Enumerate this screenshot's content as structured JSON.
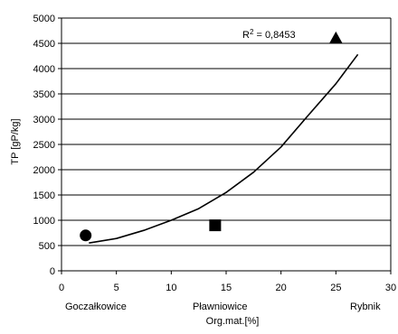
{
  "colors": {
    "grid": "#000000",
    "axis": "#000000",
    "marker": "#000000",
    "curve": "#000000",
    "background": "#ffffff"
  },
  "chart_data": {
    "type": "scatter",
    "title": "",
    "xlabel": "Org.mat.[%]",
    "ylabel": "TP [gP/kg]",
    "xlim": [
      0,
      30
    ],
    "ylim": [
      0,
      5000
    ],
    "x_ticks": [
      0,
      5,
      10,
      15,
      20,
      25,
      30
    ],
    "y_ticks": [
      0,
      500,
      1000,
      1500,
      2000,
      2500,
      3000,
      3500,
      4000,
      4500,
      5000
    ],
    "grid": "horizontal",
    "legend": "none",
    "annotation": {
      "prefix": "R",
      "superscript": "2",
      "suffix": " = 0,8453"
    },
    "points": [
      {
        "name": "Goczałkowice",
        "x": 2.2,
        "y": 700,
        "marker": "circle-icon"
      },
      {
        "name": "Pławniowice",
        "x": 14.0,
        "y": 900,
        "marker": "square-icon"
      },
      {
        "name": "Rybnik",
        "x": 25.0,
        "y": 4600,
        "marker": "triangle-icon"
      }
    ],
    "site_labels": [
      "Goczałkowice",
      "Pławniowice",
      "Rybnik"
    ],
    "trendline": {
      "type": "exponential",
      "x": [
        2.5,
        5,
        7.5,
        10,
        12.5,
        15,
        17.5,
        20,
        22.5,
        25,
        27
      ],
      "y": [
        550,
        640,
        800,
        1000,
        1230,
        1550,
        1950,
        2450,
        3080,
        3700,
        4280
      ]
    }
  }
}
